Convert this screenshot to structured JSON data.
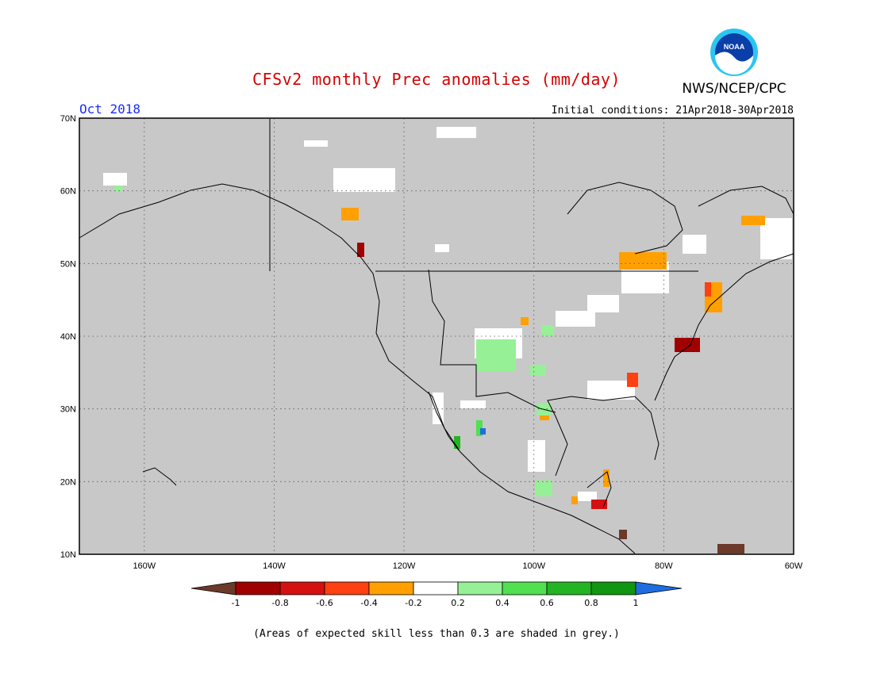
{
  "header": {
    "title": "CFSv2 monthly Prec anomalies (mm/day)",
    "agency": "NWS/NCEP/CPC",
    "logo_text": "NOAA",
    "target_month": "Oct 2018",
    "initial_conditions": "Initial conditions: 21Apr2018-30Apr2018"
  },
  "map": {
    "lat_range": [
      10,
      70
    ],
    "lon_range": [
      -170,
      -60
    ],
    "lat_ticks": [
      {
        "value": 70,
        "label": "70N"
      },
      {
        "value": 60,
        "label": "60N"
      },
      {
        "value": 50,
        "label": "50N"
      },
      {
        "value": 40,
        "label": "40N"
      },
      {
        "value": 30,
        "label": "30N"
      },
      {
        "value": 20,
        "label": "20N"
      },
      {
        "value": 10,
        "label": "10N"
      }
    ],
    "lon_ticks": [
      {
        "value": -160,
        "label": "160W"
      },
      {
        "value": -140,
        "label": "140W"
      },
      {
        "value": -120,
        "label": "120W"
      },
      {
        "value": -100,
        "label": "100W"
      },
      {
        "value": -80,
        "label": "80W"
      },
      {
        "value": -60,
        "label": "60W"
      }
    ],
    "background_color": "#c8c8c8",
    "grid": "dotted"
  },
  "colorbar": {
    "labels": [
      "-1",
      "-0.8",
      "-0.6",
      "-0.4",
      "-0.2",
      "0.2",
      "0.4",
      "0.6",
      "0.8",
      "1"
    ],
    "under_color": "#6b3a2a",
    "colors": [
      "#a00000",
      "#d41010",
      "#ff4010",
      "#ffa000",
      "#ffffff",
      "#96f096",
      "#50e050",
      "#22b422",
      "#109610"
    ],
    "over_color": "#1e6ee0"
  },
  "footer": {
    "caption": "(Areas of expected skill less than 0.3 are shaded in grey.)"
  }
}
